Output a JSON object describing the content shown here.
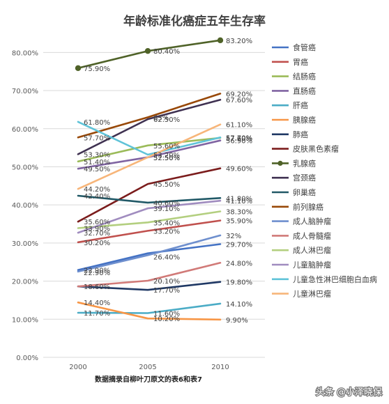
{
  "chart_data": {
    "type": "line",
    "title": "年龄标准化癌症五年生存率",
    "note": "数据摘录自柳叶刀原文的表6和表7",
    "x": [
      "2000",
      "2005",
      "2010"
    ],
    "ylim": [
      0,
      85
    ],
    "yticks": [
      "0.00%",
      "10.00%",
      "20.00%",
      "30.00%",
      "40.00%",
      "50.00%",
      "60.00%",
      "70.00%",
      "80.00%"
    ],
    "grid": true,
    "legend": "right",
    "series": [
      {
        "name": "食管癌",
        "color": "#4472c4",
        "values": [
          22.9,
          27.3,
          29.7
        ],
        "labels": [
          "22.90%",
          "",
          "29.70%"
        ]
      },
      {
        "name": "胃癌",
        "color": "#c0504d",
        "values": [
          30.2,
          33.2,
          35.9
        ],
        "labels": [
          "30.20%",
          "33.20%",
          "35.90%"
        ]
      },
      {
        "name": "结肠癌",
        "color": "#9bbb59",
        "values": [
          51.4,
          55.6,
          57.6
        ],
        "labels": [
          "51.40%",
          "55.60%",
          "57.60%"
        ]
      },
      {
        "name": "直肠癌",
        "color": "#8064a2",
        "values": [
          49.5,
          52.5,
          56.9
        ],
        "labels": [
          "49.50%",
          "52.50%",
          "56.90%"
        ]
      },
      {
        "name": "肝癌",
        "color": "#4bacc6",
        "values": [
          11.7,
          11.6,
          14.1
        ],
        "labels": [
          "11.70%",
          "11.60%",
          "14.10%"
        ]
      },
      {
        "name": "胰腺癌",
        "color": "#f79646",
        "values": [
          14.4,
          10.2,
          9.9
        ],
        "labels": [
          "14.40%",
          "10.20%",
          "9.90%"
        ]
      },
      {
        "name": "肺癌",
        "color": "#1f3864",
        "values": [
          18.6,
          17.7,
          19.8
        ],
        "labels": [
          "18.60%",
          "17.70%",
          "19.80%"
        ]
      },
      {
        "name": "皮肤黑色素瘤",
        "color": "#7b1c1c",
        "values": [
          35.6,
          45.5,
          49.6
        ],
        "labels": [
          "35.60%",
          "45.50%",
          "49.60%"
        ]
      },
      {
        "name": "乳腺癌",
        "color": "#4f6228",
        "values": [
          75.9,
          80.4,
          83.2
        ],
        "labels": [
          "75.90%",
          "80.40%",
          "83.20%"
        ],
        "markers": true
      },
      {
        "name": "宫颈癌",
        "color": "#3f3151",
        "values": [
          53.3,
          62.5,
          67.6
        ],
        "labels": [
          "53.30%",
          "62.50%",
          "67.60%"
        ]
      },
      {
        "name": "卵巢癌",
        "color": "#215967",
        "values": [
          42.4,
          40.6,
          41.8
        ],
        "labels": [
          "42.40%",
          "40.60%",
          "41.80%"
        ]
      },
      {
        "name": "前列腺癌",
        "color": "#984807",
        "values": [
          57.7,
          63.0,
          69.2
        ],
        "labels": [
          "57.70%",
          "63%",
          "69.20%"
        ]
      },
      {
        "name": "成人脑肿瘤",
        "color": "#6e8fce",
        "values": [
          22.5,
          26.8,
          32.0
        ],
        "labels": [
          "",
          "",
          "32%"
        ]
      },
      {
        "name": "成人骨髓瘤",
        "color": "#d17a78",
        "values": [
          18.6,
          20.1,
          24.8
        ],
        "labels": [
          "",
          "20.10%",
          "24.80%"
        ]
      },
      {
        "name": "成人淋巴瘤",
        "color": "#b3cf7f",
        "values": [
          33.9,
          35.4,
          38.3
        ],
        "labels": [
          "33.90%",
          "35.40%",
          "38.30%"
        ]
      },
      {
        "name": "儿童脑肿瘤",
        "color": "#a08cbf",
        "values": [
          32.7,
          39.1,
          41.1
        ],
        "labels": [
          "32.70%",
          "39.10%",
          "41.10%"
        ]
      },
      {
        "name": "儿童急性淋巴细胞白血病",
        "color": "#5fc3d8",
        "values": [
          61.8,
          53.2,
          57.7
        ],
        "labels": [
          "61.80%",
          "53.20%",
          "57.70%"
        ]
      },
      {
        "name": "儿童淋巴瘤",
        "color": "#f7b579",
        "values": [
          44.2,
          52.5,
          61.1
        ],
        "labels": [
          "44.20%",
          "52.50%",
          "61.10%"
        ]
      }
    ],
    "extra_labels": [
      {
        "text": "22.90%",
        "x": "2000",
        "y": 22.3
      },
      {
        "text": "26.40%",
        "x": "2005",
        "y": 26.4
      },
      {
        "text": "57.70%",
        "x": "2010",
        "y": 57.7
      }
    ]
  },
  "watermark": "头条 @小泽晓保"
}
